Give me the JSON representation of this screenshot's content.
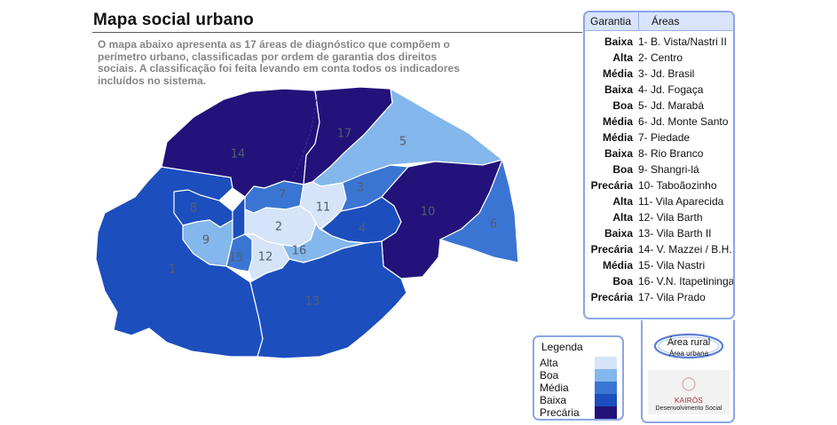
{
  "title": "Mapa social urbano",
  "description": "O mapa abaixo apresenta as 17 áreas de diagnóstico que compõem o perímetro urbano, classificadas por ordem de garantia dos direitos sociais. A classificação foi feita levando em conta todos os indicadores incluídos no sistema.",
  "colors": {
    "Alta": "#d6e4f9",
    "Boa": "#84b7ec",
    "Média": "#3a75d3",
    "Baixa": "#1c4ebd",
    "Precária": "#22127a",
    "panel_border": "#8aa6e6",
    "region_border": "#ffffff"
  },
  "areas_panel": {
    "header_garantia": "Garantia",
    "header_areas": "Áreas",
    "rows": [
      {
        "garantia": "Baixa",
        "area": "1- B. Vista/Nastri II"
      },
      {
        "garantia": "Alta",
        "area": "2- Centro"
      },
      {
        "garantia": "Média",
        "area": "3- Jd. Brasil"
      },
      {
        "garantia": "Baixa",
        "area": "4- Jd. Fogaça"
      },
      {
        "garantia": "Boa",
        "area": "5- Jd. Marabá"
      },
      {
        "garantia": "Média",
        "area": "6- Jd. Monte Santo"
      },
      {
        "garantia": "Média",
        "area": "7- Piedade"
      },
      {
        "garantia": "Baixa",
        "area": "8- Rio Branco"
      },
      {
        "garantia": "Boa",
        "area": "9- Shangri-lá"
      },
      {
        "garantia": "Precária",
        "area": "10- Taboãozinho"
      },
      {
        "garantia": "Alta",
        "area": "11- Vila Aparecida"
      },
      {
        "garantia": "Alta",
        "area": "12- Vila Barth"
      },
      {
        "garantia": "Baixa",
        "area": "13- Vila Barth II"
      },
      {
        "garantia": "Precária",
        "area": "14- V. Mazzei / B.H."
      },
      {
        "garantia": "Média",
        "area": "15- Vila Nastri"
      },
      {
        "garantia": "Boa",
        "area": "16- V.N. Itapetininga"
      },
      {
        "garantia": "Precária",
        "area": "17- Vila Prado"
      }
    ]
  },
  "legend": {
    "title": "Legenda",
    "items": [
      {
        "label": "Alta",
        "color": "#d6e4f9"
      },
      {
        "label": "Boa",
        "color": "#84b7ec"
      },
      {
        "label": "Média",
        "color": "#3a75d3"
      },
      {
        "label": "Baixa",
        "color": "#1c4ebd"
      },
      {
        "label": "Precária",
        "color": "#22127a"
      }
    ]
  },
  "rural_button": {
    "main": "Área rural",
    "sub": "Área urbana"
  },
  "logo": {
    "name": "KAIRÓS",
    "subtitle": "Desenvolvimento Social"
  },
  "regions": [
    {
      "id": 1,
      "label": "1",
      "class": "Baixa"
    },
    {
      "id": 2,
      "label": "2",
      "class": "Alta"
    },
    {
      "id": 3,
      "label": "3",
      "class": "Média"
    },
    {
      "id": 4,
      "label": "4",
      "class": "Baixa"
    },
    {
      "id": 5,
      "label": "5",
      "class": "Boa"
    },
    {
      "id": 6,
      "label": "6",
      "class": "Média"
    },
    {
      "id": 7,
      "label": "7",
      "class": "Média"
    },
    {
      "id": 8,
      "label": "8",
      "class": "Baixa"
    },
    {
      "id": 9,
      "label": "9",
      "class": "Boa"
    },
    {
      "id": 10,
      "label": "10",
      "class": "Precária"
    },
    {
      "id": 11,
      "label": "11",
      "class": "Alta"
    },
    {
      "id": 12,
      "label": "12",
      "class": "Alta"
    },
    {
      "id": 13,
      "label": "13",
      "class": "Baixa"
    },
    {
      "id": 14,
      "label": "14",
      "class": "Precária"
    },
    {
      "id": 15,
      "label": "15",
      "class": "Média"
    },
    {
      "id": 16,
      "label": "16",
      "class": "Boa"
    },
    {
      "id": 17,
      "label": "17",
      "class": "Precária"
    }
  ]
}
